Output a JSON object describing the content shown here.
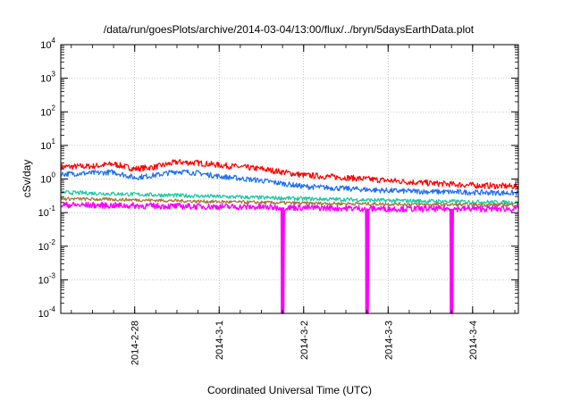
{
  "chart_data": {
    "type": "line",
    "title": "/data/run/goesPlots/archive/2014-03-04/13:00/flux/../bryn/5daysEarthData.plot",
    "xlabel": "Coordinated Universal Time (UTC)",
    "ylabel": "cSv/day",
    "y_scale": "log",
    "ylim": [
      0.0001,
      10000
    ],
    "y_ticks": [
      {
        "base": "10",
        "exp": "-4",
        "value": 0.0001
      },
      {
        "base": "10",
        "exp": "-3",
        "value": 0.001
      },
      {
        "base": "10",
        "exp": "-2",
        "value": 0.01
      },
      {
        "base": "10",
        "exp": "-1",
        "value": 0.1
      },
      {
        "base": "10",
        "exp": "0",
        "value": 1
      },
      {
        "base": "10",
        "exp": "1",
        "value": 10
      },
      {
        "base": "10",
        "exp": "2",
        "value": 100
      },
      {
        "base": "10",
        "exp": "3",
        "value": 1000
      },
      {
        "base": "10",
        "exp": "4",
        "value": 10000
      }
    ],
    "x_ticks": [
      "2014-2-28",
      "2014-3-1",
      "2014-3-2",
      "2014-3-3",
      "2014-3-4"
    ],
    "xlim": [
      "2014-02-27 03:00",
      "2014-03-04 13:00"
    ],
    "grid": true,
    "legend": "none",
    "series": [
      {
        "color": "#ff0000",
        "x": [
          "2014-02-27 03:00",
          "2014-02-27 12:00",
          "2014-02-27 18:00",
          "2014-02-28 00:00",
          "2014-02-28 06:00",
          "2014-02-28 12:00",
          "2014-02-28 18:00",
          "2014-03-01 00:00",
          "2014-03-01 12:00",
          "2014-03-02 00:00",
          "2014-03-02 12:00",
          "2014-03-03 00:00",
          "2014-03-03 12:00",
          "2014-03-04 00:00",
          "2014-03-04 13:00"
        ],
        "y": [
          2.3,
          2.4,
          2.8,
          2.0,
          2.3,
          3.2,
          3.0,
          2.6,
          2.0,
          1.3,
          1.1,
          0.9,
          0.75,
          0.65,
          0.6
        ]
      },
      {
        "color": "#1e6ff0",
        "x": [
          "2014-02-27 03:00",
          "2014-02-27 12:00",
          "2014-02-27 18:00",
          "2014-02-28 00:00",
          "2014-02-28 06:00",
          "2014-02-28 12:00",
          "2014-02-28 18:00",
          "2014-03-01 00:00",
          "2014-03-01 12:00",
          "2014-03-02 00:00",
          "2014-03-02 12:00",
          "2014-03-03 00:00",
          "2014-03-03 12:00",
          "2014-03-04 00:00",
          "2014-03-04 13:00"
        ],
        "y": [
          1.4,
          1.5,
          1.6,
          1.1,
          1.3,
          1.7,
          1.5,
          1.2,
          0.9,
          0.6,
          0.52,
          0.45,
          0.42,
          0.4,
          0.38
        ]
      },
      {
        "color": "#19c8a0",
        "x": [
          "2014-02-27 03:00",
          "2014-02-28 00:00",
          "2014-03-01 00:00",
          "2014-03-02 00:00",
          "2014-03-03 00:00",
          "2014-03-04 00:00",
          "2014-03-04 13:00"
        ],
        "y": [
          0.4,
          0.35,
          0.3,
          0.26,
          0.23,
          0.21,
          0.2
        ]
      },
      {
        "color": "#a07830",
        "x": [
          "2014-02-27 03:00",
          "2014-02-28 00:00",
          "2014-03-01 00:00",
          "2014-03-02 00:00",
          "2014-03-03 00:00",
          "2014-03-04 00:00",
          "2014-03-04 13:00"
        ],
        "y": [
          0.26,
          0.24,
          0.21,
          0.19,
          0.18,
          0.17,
          0.17
        ]
      },
      {
        "color": "#ff00ff",
        "x": [
          "2014-02-27 03:00",
          "2014-02-28 00:00",
          "2014-03-01 00:00",
          "2014-03-02 00:00",
          "2014-03-03 00:00",
          "2014-03-04 00:00",
          "2014-03-04 13:00"
        ],
        "y": [
          0.17,
          0.16,
          0.15,
          0.14,
          0.13,
          0.13,
          0.13
        ],
        "dropouts": [
          "2014-03-01 18:00",
          "2014-03-02 18:00",
          "2014-03-03 18:00"
        ]
      }
    ]
  }
}
